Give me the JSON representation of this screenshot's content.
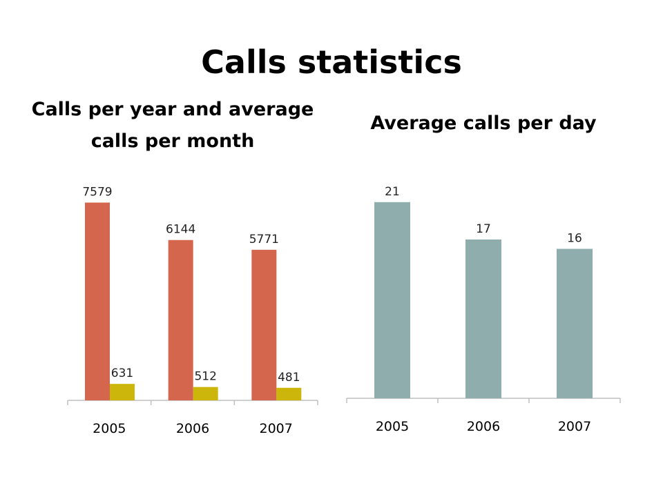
{
  "slide": {
    "title": "Calls statistics"
  },
  "colors": {
    "calls_per_year": "#d4664d",
    "avg_per_month": "#cdb60b",
    "avg_per_day": "#8fadad",
    "axis": "#bfbfbf"
  },
  "chart_data": [
    {
      "type": "bar",
      "title": "Calls per year and average calls per month",
      "categories": [
        "2005",
        "2006",
        "2007"
      ],
      "series": [
        {
          "values": [
            7579,
            6144,
            5771
          ]
        },
        {
          "values": [
            631,
            512,
            481
          ]
        }
      ],
      "ylim": [
        0,
        8200
      ],
      "grid": false,
      "legend": "none"
    },
    {
      "type": "bar",
      "title": "Average calls per day",
      "categories": [
        "2005",
        "2006",
        "2007"
      ],
      "series": [
        {
          "values": [
            21,
            17,
            16
          ]
        }
      ],
      "ylim": [
        0,
        21.8
      ],
      "grid": false,
      "legend": "none"
    }
  ]
}
